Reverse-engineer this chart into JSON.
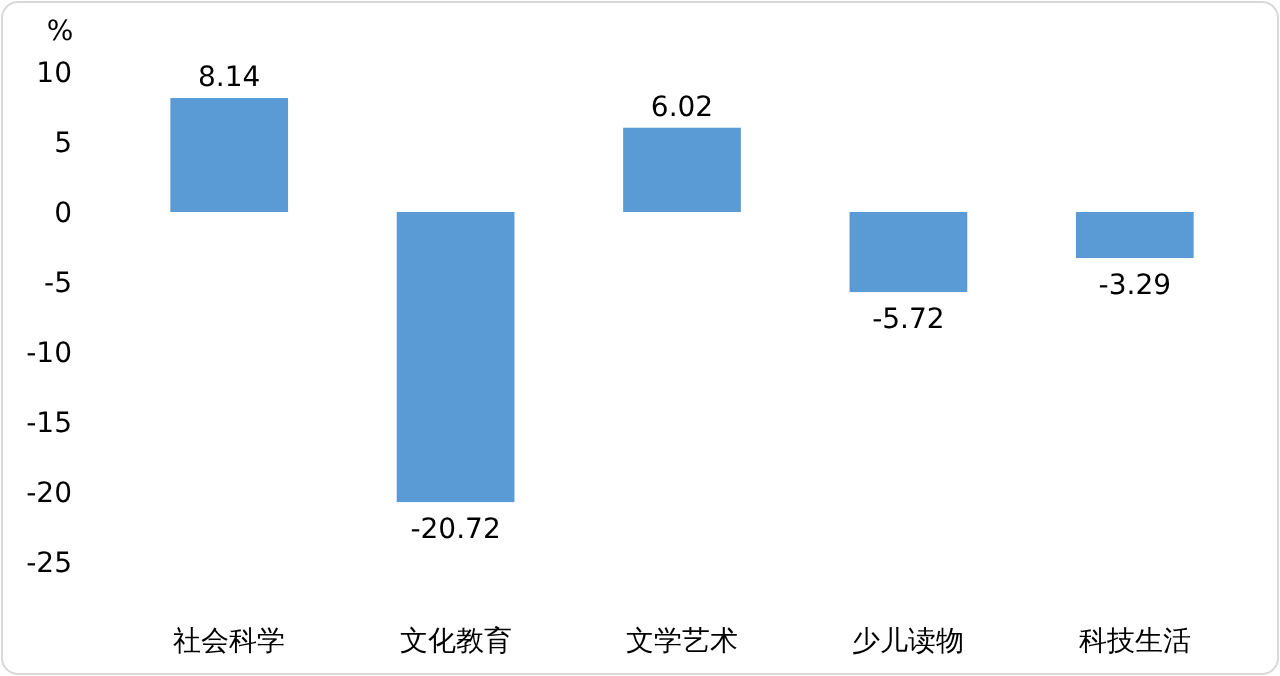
{
  "chart_data": {
    "type": "bar",
    "ylabel": "%",
    "categories": [
      "社会科学",
      "文化教育",
      "文学艺术",
      "少儿读物",
      "科技生活"
    ],
    "values": [
      8.14,
      -20.72,
      6.02,
      -5.72,
      -3.29
    ],
    "color": "#5b9bd5",
    "ylim": [
      -25,
      10
    ],
    "yticks": [
      -25,
      -20,
      -15,
      -10,
      -5,
      0,
      5,
      10
    ],
    "data_labels": true,
    "grid": false
  }
}
